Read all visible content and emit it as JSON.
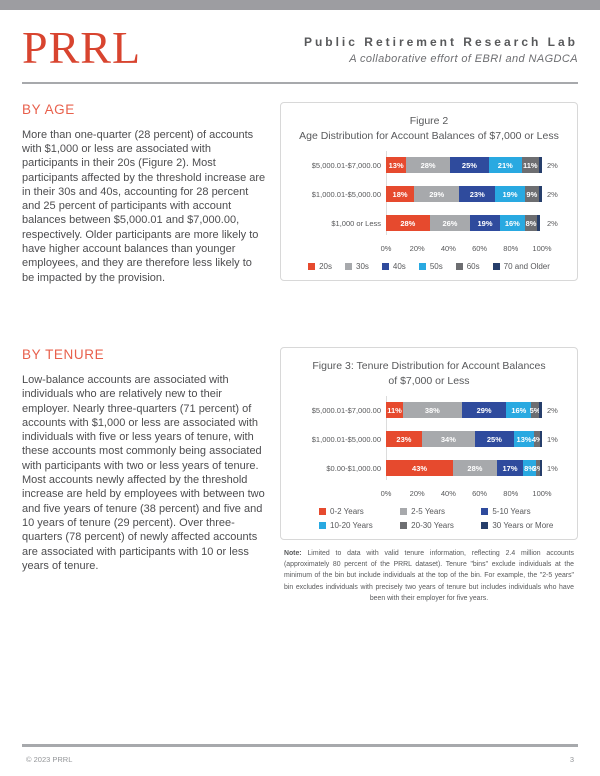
{
  "header": {
    "logo": "PRRL",
    "org_name": "Public Retirement Research Lab",
    "tagline": "A collaborative effort of EBRI and NAGDCA"
  },
  "sections": {
    "by_age": {
      "heading": "BY AGE",
      "body": "More than one-quarter (28 percent) of accounts with $1,000 or less are associated with participants in their 20s (Figure 2). Most participants affected by the threshold increase are in their 30s and 40s, accounting for 28 percent and 25 percent of participants with account balances between $5,000.01 and $7,000.00, respectively. Older participants are more likely to have higher account balances than younger employees, and they are therefore less likely to be impacted by the provision."
    },
    "by_tenure": {
      "heading": "BY TENURE",
      "body": "Low-balance accounts are associated with individuals who are relatively new to their employer. Nearly three-quarters (71 percent) of accounts with $1,000 or less are associated with individuals with five or less years of tenure, with these accounts most commonly being associated with participants with two or less years of tenure. Most accounts newly affected by the threshold increase are held by employees with between two and five years of tenure (38 percent) and five and 10 years of tenure (29 percent). Over three-quarters (78 percent) of newly affected accounts are associated with participants with 10 or less years of tenure."
    }
  },
  "chart_data": [
    {
      "type": "bar",
      "stacked": true,
      "orientation": "horizontal",
      "title_line1": "Figure 2",
      "title_line2": "Age Distribution for Account Balances of $7,000 or Less",
      "categories": [
        "$5,000.01-$7,000.00",
        "$1,000.01-$5,000.00",
        "$1,000 or Less"
      ],
      "series": [
        {
          "name": "20s",
          "color": "#e64a2e",
          "values": [
            13,
            18,
            28
          ]
        },
        {
          "name": "30s",
          "color": "#a7a9ac",
          "values": [
            28,
            29,
            26
          ]
        },
        {
          "name": "40s",
          "color": "#2f4b9d",
          "values": [
            25,
            23,
            19
          ]
        },
        {
          "name": "50s",
          "color": "#29a9e1",
          "values": [
            21,
            19,
            16
          ]
        },
        {
          "name": "60s",
          "color": "#6d6e71",
          "values": [
            11,
            9,
            8
          ]
        },
        {
          "name": "70 and Older",
          "color": "#263e6b",
          "values": [
            2,
            2,
            2
          ]
        }
      ],
      "x_ticks": [
        "0%",
        "20%",
        "40%",
        "60%",
        "80%",
        "100%"
      ],
      "xlim": [
        0,
        100
      ],
      "grid": false,
      "legend_position": "bottom-center",
      "last_series_label_outside": true
    },
    {
      "type": "bar",
      "stacked": true,
      "orientation": "horizontal",
      "title_line1": "Figure 3: Tenure Distribution for Account Balances",
      "title_line2": "of $7,000 or Less",
      "categories": [
        "$5,000.01-$7,000.00",
        "$1,000.01-$5,000.00",
        "$0.00-$1,000.00"
      ],
      "series": [
        {
          "name": "0-2 Years",
          "color": "#e64a2e",
          "values": [
            11,
            23,
            43
          ]
        },
        {
          "name": "2-5 Years",
          "color": "#a7a9ac",
          "values": [
            38,
            34,
            28
          ]
        },
        {
          "name": "5-10 Years",
          "color": "#2f4b9d",
          "values": [
            29,
            25,
            17
          ]
        },
        {
          "name": "10-20 Years",
          "color": "#29a9e1",
          "values": [
            16,
            13,
            8
          ]
        },
        {
          "name": "20-30 Years",
          "color": "#6d6e71",
          "values": [
            5,
            4,
            3
          ]
        },
        {
          "name": "30 Years or More",
          "color": "#263e6b",
          "values": [
            2,
            1,
            1
          ]
        }
      ],
      "x_ticks": [
        "0%",
        "20%",
        "40%",
        "60%",
        "80%",
        "100%"
      ],
      "xlim": [
        0,
        100
      ],
      "grid": false,
      "legend_position": "bottom-left-2rows",
      "last_series_label_outside": true,
      "note_label": "Note:",
      "note_text": " Limited to data with valid tenure information, reflecting 2.4 million accounts (approximately 80 percent of the PRRL dataset). Tenure \"bins\" exclude individuals at the minimum of the bin but include individuals at the top of the bin. For example, the \"2-5 years\" bin excludes individuals with precisely two years of tenure but includes individuals who have been with their employer for five years."
    }
  ],
  "footer": {
    "copyright": "© 2023 PRRL",
    "page_number": "3"
  }
}
